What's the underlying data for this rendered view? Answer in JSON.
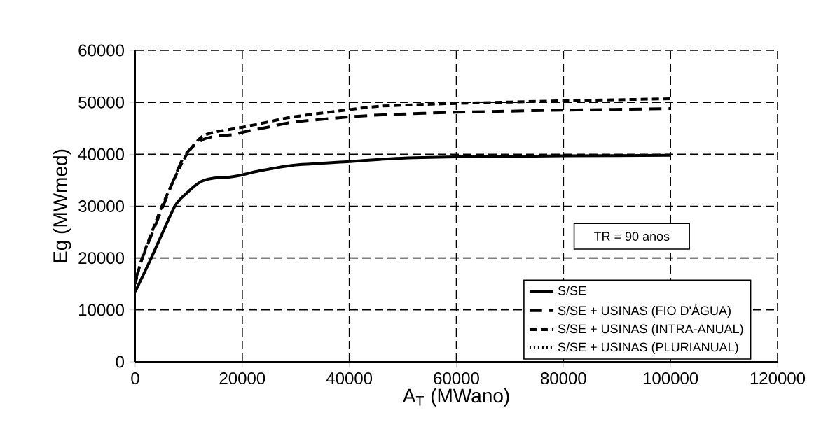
{
  "chart_data": {
    "type": "line",
    "xlabel": "A$_{T}$ (MWano)",
    "ylabel": "Eg (MWmed)",
    "xlim": [
      0,
      120000
    ],
    "xticks": [
      0,
      20000,
      40000,
      60000,
      80000,
      100000,
      120000
    ],
    "ylim": [
      0,
      60000
    ],
    "yticks": [
      0,
      10000,
      20000,
      30000,
      40000,
      50000,
      60000
    ],
    "grid": true,
    "legend": "bottom right",
    "marker": "none",
    "annotations": [
      "TR = 90 anos"
    ],
    "series": [
      {
        "name": "S/SE",
        "color": "#000000",
        "line_style": "solid",
        "x": [
          0,
          3000,
          7400,
          9800,
          12200,
          14600,
          17500,
          19400,
          23200,
          29500,
          40000,
          48700,
          60000,
          80000,
          100000
        ],
        "values": [
          13500,
          20000,
          30000,
          32700,
          34700,
          35400,
          35600,
          35900,
          36800,
          37900,
          38600,
          39200,
          39500,
          39700,
          39800
        ]
      },
      {
        "name": "S/SE + USINAS (FIO D'ÁGUA)",
        "color": "#000000",
        "line_style": "dashed",
        "x": [
          0,
          1350,
          5200,
          8800,
          10700,
          12600,
          15000,
          18400,
          20300,
          24700,
          29500,
          40000,
          46300,
          60000,
          80000,
          100000
        ],
        "values": [
          15500,
          20000,
          30000,
          39000,
          41400,
          42800,
          43500,
          43800,
          44300,
          45200,
          46200,
          47200,
          47600,
          48100,
          48500,
          48800
        ]
      },
      {
        "name": "S/SE + USINAS (INTRA-ANUAL)",
        "color": "#000000",
        "line_style": "dashed",
        "x": [
          0,
          1300,
          5000,
          8800,
          10700,
          12600,
          15000,
          20000,
          24700,
          29500,
          40000,
          46300,
          60000,
          80000,
          100000
        ],
        "values": [
          15000,
          20000,
          30000,
          38500,
          41500,
          43500,
          44300,
          45200,
          46200,
          47200,
          48600,
          49300,
          49800,
          50300,
          50700
        ]
      },
      {
        "name": "S/SE + USINAS (PLURIANUAL)",
        "color": "#000000",
        "line_style": "dotted"
      }
    ]
  }
}
